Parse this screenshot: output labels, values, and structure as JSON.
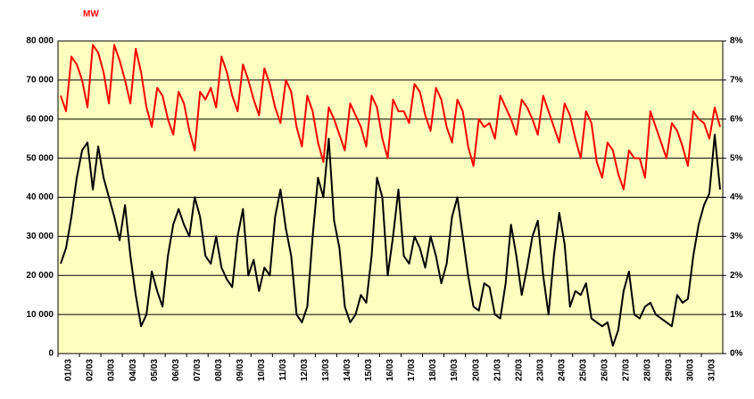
{
  "chart_data": {
    "type": "line",
    "y_label": "MW",
    "categories": [
      "01/03",
      null,
      null,
      null,
      "02/03",
      null,
      null,
      null,
      "03/03",
      null,
      null,
      null,
      "04/03",
      null,
      null,
      null,
      "05/03",
      null,
      null,
      null,
      "06/03",
      null,
      null,
      null,
      "07/03",
      null,
      null,
      null,
      "08/03",
      null,
      null,
      null,
      "09/03",
      null,
      null,
      null,
      "10/03",
      null,
      null,
      null,
      "11/03",
      null,
      null,
      null,
      "12/03",
      null,
      null,
      null,
      "13/03",
      null,
      null,
      null,
      "14/03",
      null,
      null,
      null,
      "15/03",
      null,
      null,
      null,
      "16/03",
      null,
      null,
      null,
      "17/03",
      null,
      null,
      null,
      "18/03",
      null,
      null,
      null,
      "19/03",
      null,
      null,
      null,
      "20/03",
      null,
      null,
      null,
      "21/03",
      null,
      null,
      null,
      "22/03",
      null,
      null,
      null,
      "23/03",
      null,
      null,
      null,
      "24/03",
      null,
      null,
      null,
      "25/03",
      null,
      null,
      null,
      "26/03",
      null,
      null,
      null,
      "27/03",
      null,
      null,
      null,
      "28/03",
      null,
      null,
      null,
      "29/03",
      null,
      null,
      null,
      "30/03",
      null,
      null,
      null,
      "31/03",
      null,
      null,
      null
    ],
    "series": [
      {
        "color": "#ff0000",
        "values": [
          66000,
          62000,
          76000,
          74000,
          70000,
          63000,
          79000,
          77000,
          72000,
          64000,
          79000,
          75000,
          70000,
          64000,
          78000,
          72000,
          63000,
          58000,
          68000,
          66000,
          60000,
          56000,
          67000,
          64000,
          57000,
          52000,
          67000,
          65000,
          68000,
          63000,
          76000,
          72000,
          66000,
          62000,
          74000,
          70000,
          65000,
          61000,
          73000,
          69000,
          63000,
          59000,
          70000,
          67000,
          58000,
          53000,
          66000,
          62000,
          54000,
          49000,
          63000,
          60000,
          56000,
          52000,
          64000,
          61000,
          58000,
          53000,
          66000,
          63000,
          55000,
          50000,
          65000,
          62000,
          62000,
          59000,
          69000,
          67000,
          61000,
          57000,
          68000,
          65000,
          58000,
          54000,
          65000,
          62000,
          53000,
          48000,
          60000,
          58000,
          59000,
          55000,
          66000,
          63000,
          60000,
          56000,
          65000,
          63000,
          60000,
          56000,
          66000,
          62000,
          58000,
          54000,
          64000,
          61000,
          55000,
          50000,
          62000,
          59000,
          49000,
          45000,
          54000,
          52000,
          46000,
          42000,
          52000,
          50000,
          50000,
          45000,
          62000,
          58000,
          54000,
          50000,
          59000,
          57000,
          53000,
          48000,
          62000,
          60000,
          59000,
          55000,
          63000,
          58000
        ]
      },
      {
        "color": "#000000",
        "axis": "y2",
        "values": [
          2.3,
          2.7,
          3.5,
          4.5,
          5.2,
          5.4,
          4.2,
          5.3,
          4.5,
          4.0,
          3.5,
          2.9,
          3.8,
          2.5,
          1.5,
          0.7,
          1.0,
          2.1,
          1.6,
          1.2,
          2.5,
          3.3,
          3.7,
          3.3,
          3.0,
          4.0,
          3.5,
          2.5,
          2.3,
          3.0,
          2.2,
          1.9,
          1.7,
          3.0,
          3.7,
          2.0,
          2.4,
          1.6,
          2.2,
          2.0,
          3.5,
          4.2,
          3.2,
          2.5,
          1.0,
          0.8,
          1.2,
          3.0,
          4.5,
          4.0,
          5.5,
          3.4,
          2.7,
          1.2,
          0.8,
          1.0,
          1.5,
          1.3,
          2.5,
          4.5,
          4.0,
          2.0,
          3.0,
          4.2,
          2.5,
          2.3,
          3.0,
          2.7,
          2.2,
          3.0,
          2.5,
          1.8,
          2.3,
          3.5,
          4.0,
          3.0,
          2.0,
          1.2,
          1.1,
          1.8,
          1.7,
          1.0,
          0.9,
          1.8,
          3.3,
          2.5,
          1.5,
          2.2,
          3.0,
          3.4,
          2.0,
          1.0,
          2.5,
          3.6,
          2.8,
          1.2,
          1.6,
          1.5,
          1.8,
          0.9,
          0.8,
          0.7,
          0.8,
          0.2,
          0.6,
          1.6,
          2.1,
          1.0,
          0.9,
          1.2,
          1.3,
          1.0,
          0.9,
          0.8,
          0.7,
          1.5,
          1.3,
          1.4,
          2.5,
          3.3,
          3.8,
          4.1,
          5.6,
          4.2
        ]
      }
    ],
    "ylim": [
      0,
      80000
    ],
    "yticks": [
      0,
      {
        "value": 10000,
        "label": "10 000"
      },
      {
        "value": 20000,
        "label": "20 000"
      },
      {
        "value": 30000,
        "label": "30 000"
      },
      {
        "value": 40000,
        "label": "40 000"
      },
      {
        "value": 50000,
        "label": "50 000"
      },
      {
        "value": 60000,
        "label": "60 000"
      },
      {
        "value": 70000,
        "label": "70 000"
      },
      {
        "value": 80000,
        "label": "80 000"
      }
    ],
    "y2lim": [
      0,
      8
    ],
    "y2ticks": [
      {
        "value": 0,
        "label": "0%"
      },
      {
        "value": 1,
        "label": "1%"
      },
      {
        "value": 2,
        "label": "2%"
      },
      {
        "value": 3,
        "label": "3%"
      },
      {
        "value": 4,
        "label": "4%"
      },
      {
        "value": 5,
        "label": "5%"
      },
      {
        "value": 6,
        "label": "6%"
      },
      {
        "value": 7,
        "label": "7%"
      },
      {
        "value": 8,
        "label": "8%"
      }
    ],
    "grid": true,
    "background": "#ffffc0"
  }
}
